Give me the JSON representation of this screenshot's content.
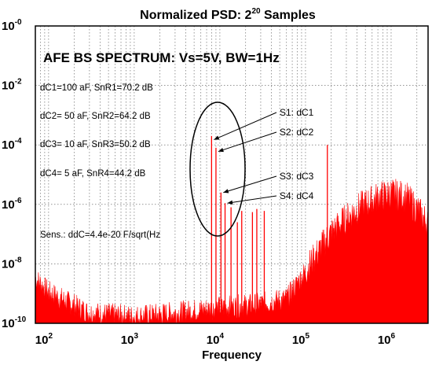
{
  "chart_data": {
    "type": "line",
    "title": {
      "text": "Normalized PSD: 2",
      "superscript": "20",
      "suffix": " Samples"
    },
    "xlabel": "Frequency",
    "ylabel": "",
    "x_scale": "log",
    "y_scale": "log",
    "xlim": [
      70,
      2700000
    ],
    "ylim": [
      1e-10,
      1
    ],
    "x_ticks": [
      {
        "base": "10",
        "exp": "2",
        "value": 100
      },
      {
        "base": "10",
        "exp": "3",
        "value": 1000
      },
      {
        "base": "10",
        "exp": "4",
        "value": 10000
      },
      {
        "base": "10",
        "exp": "5",
        "value": 100000
      },
      {
        "base": "10",
        "exp": "6",
        "value": 1000000
      }
    ],
    "y_ticks": [
      {
        "base": "10",
        "exp": "-0",
        "value": 1
      },
      {
        "base": "10",
        "exp": "-2",
        "value": 0.01
      },
      {
        "base": "10",
        "exp": "-4",
        "value": 0.0001
      },
      {
        "base": "10",
        "exp": "-6",
        "value": 1e-06
      },
      {
        "base": "10",
        "exp": "-8",
        "value": 1e-08
      },
      {
        "base": "10",
        "exp": "-10",
        "value": 1e-10
      }
    ],
    "grid": true,
    "series": [
      {
        "color": "#ff0000",
        "noise_floor": [
          {
            "x": 70,
            "y": 3e-09
          },
          {
            "x": 100,
            "y": 1e-09
          },
          {
            "x": 300,
            "y": 2e-10
          },
          {
            "x": 1000,
            "y": 1.5e-10
          },
          {
            "x": 3000,
            "y": 2e-10
          },
          {
            "x": 10000,
            "y": 3e-10
          },
          {
            "x": 30000,
            "y": 4e-10
          },
          {
            "x": 60000,
            "y": 6e-10
          },
          {
            "x": 100000,
            "y": 5e-09
          },
          {
            "x": 200000,
            "y": 1e-07
          },
          {
            "x": 400000,
            "y": 6e-07
          },
          {
            "x": 700000,
            "y": 1.5e-06
          },
          {
            "x": 1000000,
            "y": 2e-06
          },
          {
            "x": 1500000,
            "y": 1.5e-06
          },
          {
            "x": 2000000,
            "y": 6e-07
          },
          {
            "x": 2700000,
            "y": 2e-07
          }
        ],
        "peaks": [
          {
            "x": 8000,
            "y": 0.0002
          },
          {
            "x": 9000,
            "y": 8e-05
          },
          {
            "x": 10300,
            "y": 2.5e-06
          },
          {
            "x": 11500,
            "y": 1.1e-06
          },
          {
            "x": 13500,
            "y": 8e-07
          },
          {
            "x": 16000,
            "y": 2.5e-07
          },
          {
            "x": 18000,
            "y": 6e-07
          },
          {
            "x": 24000,
            "y": 5.5e-07
          },
          {
            "x": 27000,
            "y": 7e-07
          },
          {
            "x": 33000,
            "y": 6e-07
          },
          {
            "x": 180000,
            "y": 0.0001
          }
        ]
      }
    ]
  },
  "annotations": {
    "heading": "AFE BS SPECTRUM:  Vs=5V,   BW=1Hz",
    "lines": [
      "dC1=100 aF, SnR1=70.2 dB",
      "dC2=  50 aF, SnR2=64.2 dB",
      "dC3=  10 aF, SnR3=50.2 dB",
      "dC4=    5 aF, SnR4=44.2 dB"
    ],
    "sensitivity": "Sens.: ddC=4.4e-20 F/sqrt(Hz",
    "callouts": [
      {
        "label": "S1: dC1",
        "x": 8000,
        "y": 0.00015
      },
      {
        "label": "S2: dC2",
        "x": 9000,
        "y": 6e-05
      },
      {
        "label": "S3: dC3",
        "x": 10300,
        "y": 2.5e-06
      },
      {
        "label": "S4: dC4",
        "x": 11500,
        "y": 1.1e-06
      }
    ]
  }
}
